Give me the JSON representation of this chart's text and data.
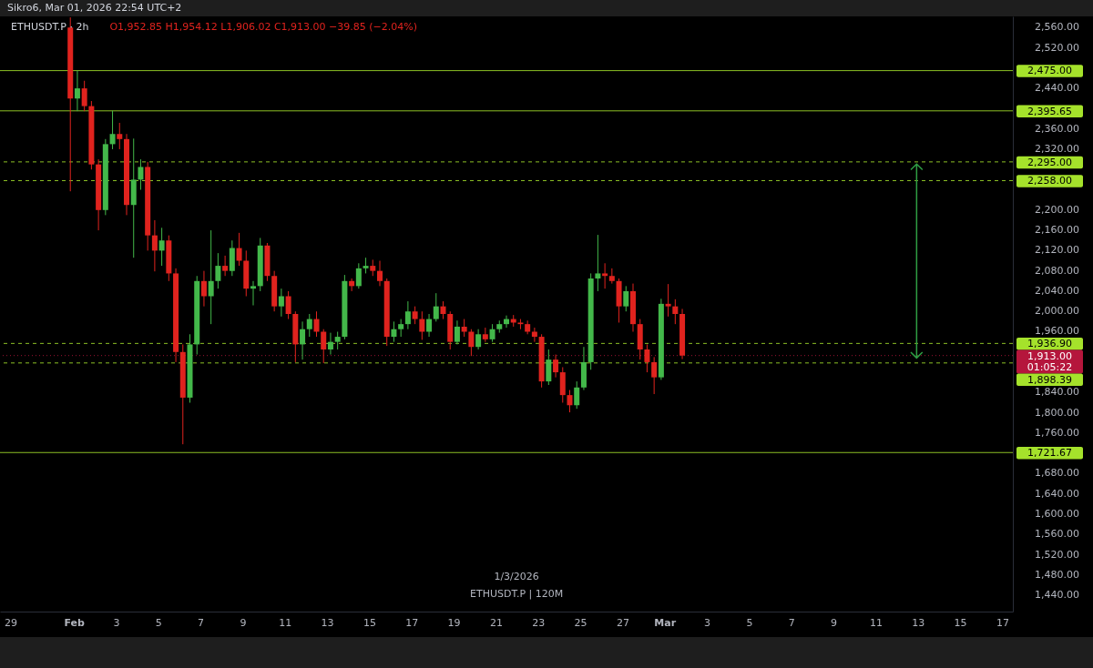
{
  "chart_data": {
    "type": "candlestick",
    "title": "ETHUSDT.P · 2h",
    "subtitle": "O1,952.85 H1,954.12 L1,906.02 C1,913.00 −39.85 (−2.04%)",
    "annotations": [
      "Sikro6, Mar 01, 2026 22:54 UTC+2",
      "1/3/2026",
      "ETHUSDT.P | 120M"
    ],
    "x": [
      "2026-01-31T20:00",
      "2026-02-01T04:00",
      "2026-02-01T12:00",
      "2026-02-01T20:00",
      "2026-02-02T04:00",
      "2026-02-02T12:00",
      "2026-02-02T20:00",
      "2026-02-03T04:00",
      "2026-02-03T12:00",
      "2026-02-03T20:00",
      "2026-02-04T04:00",
      "2026-02-04T12:00",
      "2026-02-04T20:00",
      "2026-02-05T04:00",
      "2026-02-05T12:00",
      "2026-02-05T20:00",
      "2026-02-06T04:00",
      "2026-02-06T12:00",
      "2026-02-06T20:00",
      "2026-02-07T04:00",
      "2026-02-07T12:00",
      "2026-02-07T20:00",
      "2026-02-08T04:00",
      "2026-02-08T12:00",
      "2026-02-08T20:00",
      "2026-02-09T04:00",
      "2026-02-09T12:00",
      "2026-02-09T20:00",
      "2026-02-10T04:00",
      "2026-02-10T12:00",
      "2026-02-10T20:00",
      "2026-02-11T04:00",
      "2026-02-11T12:00",
      "2026-02-11T20:00",
      "2026-02-12T04:00",
      "2026-02-12T12:00",
      "2026-02-12T20:00",
      "2026-02-13T04:00",
      "2026-02-13T12:00",
      "2026-02-13T20:00",
      "2026-02-14T04:00",
      "2026-02-14T12:00",
      "2026-02-14T20:00",
      "2026-02-15T04:00",
      "2026-02-15T12:00",
      "2026-02-15T20:00",
      "2026-02-16T04:00",
      "2026-02-16T12:00",
      "2026-02-16T20:00",
      "2026-02-17T04:00",
      "2026-02-17T12:00",
      "2026-02-17T20:00",
      "2026-02-18T04:00",
      "2026-02-18T12:00",
      "2026-02-18T20:00",
      "2026-02-19T04:00",
      "2026-02-19T12:00",
      "2026-02-19T20:00",
      "2026-02-20T04:00",
      "2026-02-20T12:00",
      "2026-02-20T20:00",
      "2026-02-21T04:00",
      "2026-02-21T12:00",
      "2026-02-21T20:00",
      "2026-02-22T04:00",
      "2026-02-22T12:00",
      "2026-02-22T20:00",
      "2026-02-23T04:00",
      "2026-02-23T12:00",
      "2026-02-23T20:00",
      "2026-02-24T04:00",
      "2026-02-24T12:00",
      "2026-02-24T20:00",
      "2026-02-25T04:00",
      "2026-02-25T12:00",
      "2026-02-25T20:00",
      "2026-02-26T04:00",
      "2026-02-26T12:00",
      "2026-02-26T20:00",
      "2026-02-27T04:00",
      "2026-02-27T12:00",
      "2026-02-27T20:00",
      "2026-02-28T04:00",
      "2026-02-28T12:00",
      "2026-02-28T20:00",
      "2026-03-01T04:00",
      "2026-03-01T12:00",
      "2026-03-01T20:00"
    ],
    "ohlc": [
      [
        2560,
        2580,
        2237,
        2420
      ],
      [
        2420,
        2475,
        2395,
        2440
      ],
      [
        2440,
        2455,
        2395,
        2405
      ],
      [
        2405,
        2415,
        2280,
        2290
      ],
      [
        2290,
        2300,
        2160,
        2200
      ],
      [
        2200,
        2340,
        2190,
        2330
      ],
      [
        2330,
        2396,
        2320,
        2350
      ],
      [
        2350,
        2372,
        2320,
        2340
      ],
      [
        2340,
        2350,
        2190,
        2210
      ],
      [
        2210,
        2341,
        2106,
        2260
      ],
      [
        2260,
        2300,
        2240,
        2285
      ],
      [
        2285,
        2295,
        2120,
        2150
      ],
      [
        2150,
        2180,
        2079,
        2120
      ],
      [
        2120,
        2165,
        2090,
        2140
      ],
      [
        2140,
        2150,
        2060,
        2075
      ],
      [
        2075,
        2085,
        1900,
        1920
      ],
      [
        1920,
        1935,
        1738,
        1830
      ],
      [
        1830,
        1955,
        1820,
        1935
      ],
      [
        1935,
        2070,
        1915,
        2060
      ],
      [
        2060,
        2080,
        2010,
        2030
      ],
      [
        2030,
        2160,
        1975,
        2060
      ],
      [
        2060,
        2115,
        2045,
        2090
      ],
      [
        2090,
        2110,
        2070,
        2080
      ],
      [
        2080,
        2140,
        2070,
        2125
      ],
      [
        2125,
        2155,
        2090,
        2100
      ],
      [
        2100,
        2120,
        2030,
        2045
      ],
      [
        2045,
        2060,
        2012,
        2050
      ],
      [
        2050,
        2145,
        2040,
        2130
      ],
      [
        2130,
        2135,
        2060,
        2070
      ],
      [
        2070,
        2080,
        2000,
        2010
      ],
      [
        2010,
        2045,
        1990,
        2030
      ],
      [
        2030,
        2040,
        1985,
        1995
      ],
      [
        1995,
        2000,
        1900,
        1935
      ],
      [
        1935,
        1980,
        1905,
        1965
      ],
      [
        1965,
        1995,
        1950,
        1985
      ],
      [
        1985,
        2000,
        1950,
        1960
      ],
      [
        1960,
        1965,
        1898,
        1925
      ],
      [
        1925,
        1958,
        1915,
        1940
      ],
      [
        1940,
        1960,
        1925,
        1950
      ],
      [
        1950,
        2072,
        1945,
        2060
      ],
      [
        2060,
        2065,
        2040,
        2050
      ],
      [
        2050,
        2095,
        2045,
        2085
      ],
      [
        2085,
        2106,
        2075,
        2090
      ],
      [
        2090,
        2102,
        2070,
        2080
      ],
      [
        2080,
        2100,
        2050,
        2060
      ],
      [
        2060,
        2065,
        1932,
        1950
      ],
      [
        1950,
        1980,
        1940,
        1965
      ],
      [
        1965,
        1985,
        1950,
        1975
      ],
      [
        1975,
        2020,
        1965,
        2000
      ],
      [
        2000,
        2010,
        1975,
        1985
      ],
      [
        1985,
        2000,
        1944,
        1960
      ],
      [
        1960,
        1995,
        1950,
        1985
      ],
      [
        1985,
        2036,
        1980,
        2010
      ],
      [
        2010,
        2020,
        1985,
        1995
      ],
      [
        1995,
        2000,
        1925,
        1940
      ],
      [
        1940,
        1982,
        1935,
        1970
      ],
      [
        1970,
        1985,
        1950,
        1960
      ],
      [
        1960,
        1965,
        1912,
        1930
      ],
      [
        1930,
        1965,
        1925,
        1955
      ],
      [
        1955,
        1968,
        1940,
        1945
      ],
      [
        1945,
        1975,
        1940,
        1965
      ],
      [
        1965,
        1982,
        1958,
        1975
      ],
      [
        1975,
        1992,
        1968,
        1985
      ],
      [
        1985,
        1993,
        1970,
        1978
      ],
      [
        1978,
        1985,
        1965,
        1975
      ],
      [
        1975,
        1982,
        1955,
        1960
      ],
      [
        1960,
        1968,
        1940,
        1950
      ],
      [
        1950,
        1955,
        1850,
        1862
      ],
      [
        1862,
        1925,
        1855,
        1905
      ],
      [
        1905,
        1915,
        1870,
        1880
      ],
      [
        1880,
        1890,
        1820,
        1835
      ],
      [
        1835,
        1845,
        1801,
        1815
      ],
      [
        1815,
        1862,
        1808,
        1850
      ],
      [
        1850,
        1930,
        1845,
        1900
      ],
      [
        1900,
        2075,
        1885,
        2065
      ],
      [
        2065,
        2151,
        2040,
        2075
      ],
      [
        2075,
        2095,
        2045,
        2070
      ],
      [
        2070,
        2085,
        2055,
        2060
      ],
      [
        2060,
        2065,
        1978,
        2010
      ],
      [
        2010,
        2050,
        2000,
        2040
      ],
      [
        2040,
        2055,
        1960,
        1975
      ],
      [
        1975,
        1985,
        1905,
        1925
      ],
      [
        1925,
        1935,
        1880,
        1900
      ],
      [
        1900,
        1910,
        1837,
        1870
      ],
      [
        1870,
        2025,
        1865,
        2015
      ],
      [
        2015,
        2054,
        1990,
        2010
      ],
      [
        2010,
        2024,
        1975,
        1995
      ],
      [
        1995,
        2005,
        1906,
        1913
      ]
    ],
    "colors": [
      "#e0231e",
      "#43b84a",
      "#e0231e",
      "#e0231e",
      "#e0231e",
      "#43b84a",
      "#43b84a",
      "#e0231e",
      "#e0231e",
      "#43b84a",
      "#43b84a",
      "#e0231e",
      "#e0231e",
      "#43b84a",
      "#e0231e",
      "#e0231e",
      "#e0231e",
      "#43b84a",
      "#43b84a",
      "#e0231e",
      "#43b84a",
      "#43b84a",
      "#e0231e",
      "#43b84a",
      "#e0231e",
      "#e0231e",
      "#43b84a",
      "#43b84a",
      "#e0231e",
      "#e0231e",
      "#43b84a",
      "#e0231e",
      "#e0231e",
      "#43b84a",
      "#43b84a",
      "#e0231e",
      "#e0231e",
      "#43b84a",
      "#43b84a",
      "#43b84a",
      "#e0231e",
      "#43b84a",
      "#43b84a",
      "#e0231e",
      "#e0231e",
      "#e0231e",
      "#43b84a",
      "#43b84a",
      "#43b84a",
      "#e0231e",
      "#e0231e",
      "#43b84a",
      "#43b84a",
      "#e0231e",
      "#e0231e",
      "#43b84a",
      "#e0231e",
      "#e0231e",
      "#43b84a",
      "#e0231e",
      "#43b84a",
      "#43b84a",
      "#43b84a",
      "#e0231e",
      "#e0231e",
      "#e0231e",
      "#e0231e",
      "#e0231e",
      "#43b84a",
      "#e0231e",
      "#e0231e",
      "#e0231e",
      "#43b84a",
      "#43b84a",
      "#43b84a",
      "#43b84a",
      "#e0231e",
      "#e0231e",
      "#e0231e",
      "#43b84a",
      "#e0231e",
      "#e0231e",
      "#e0231e",
      "#e0231e",
      "#43b84a",
      "#e0231e",
      "#e0231e",
      "#e0231e"
    ],
    "xlim": [
      "2026-01-28T12:00",
      "2026-03-17T12:00"
    ],
    "xticks": [
      {
        "value": "2026-01-29",
        "label": "29"
      },
      {
        "value": "2026-02-01",
        "label": "Feb"
      },
      {
        "value": "2026-02-03",
        "label": "3"
      },
      {
        "value": "2026-02-05",
        "label": "5"
      },
      {
        "value": "2026-02-07",
        "label": "7"
      },
      {
        "value": "2026-02-09",
        "label": "9"
      },
      {
        "value": "2026-02-11",
        "label": "11"
      },
      {
        "value": "2026-02-13",
        "label": "13"
      },
      {
        "value": "2026-02-15",
        "label": "15"
      },
      {
        "value": "2026-02-17",
        "label": "17"
      },
      {
        "value": "2026-02-19",
        "label": "19"
      },
      {
        "value": "2026-02-21",
        "label": "21"
      },
      {
        "value": "2026-02-23",
        "label": "23"
      },
      {
        "value": "2026-02-25",
        "label": "25"
      },
      {
        "value": "2026-02-27",
        "label": "27"
      },
      {
        "value": "2026-03-01",
        "label": "Mar"
      },
      {
        "value": "2026-03-03",
        "label": "3"
      },
      {
        "value": "2026-03-05",
        "label": "5"
      },
      {
        "value": "2026-03-07",
        "label": "7"
      },
      {
        "value": "2026-03-09",
        "label": "9"
      },
      {
        "value": "2026-03-11",
        "label": "11"
      },
      {
        "value": "2026-03-13",
        "label": "13"
      },
      {
        "value": "2026-03-15",
        "label": "15"
      },
      {
        "value": "2026-03-17",
        "label": "17"
      }
    ],
    "ylim": [
      1408,
      2582
    ],
    "yticks": [
      {
        "value": 2560,
        "label": "2,560.00"
      },
      {
        "value": 2520,
        "label": "2,520.00"
      },
      {
        "value": 2440,
        "label": "2,440.00"
      },
      {
        "value": 2360,
        "label": "2,360.00"
      },
      {
        "value": 2320,
        "label": "2,320.00"
      },
      {
        "value": 2200,
        "label": "2,200.00"
      },
      {
        "value": 2160,
        "label": "2,160.00"
      },
      {
        "value": 2120,
        "label": "2,120.00"
      },
      {
        "value": 2080,
        "label": "2,080.00"
      },
      {
        "value": 2040,
        "label": "2,040.00"
      },
      {
        "value": 2000,
        "label": "2,000.00"
      },
      {
        "value": 1960,
        "label": "1,960.00"
      },
      {
        "value": 1840,
        "label": "1,840.00"
      },
      {
        "value": 1800,
        "label": "1,800.00"
      },
      {
        "value": 1760,
        "label": "1,760.00"
      },
      {
        "value": 1680,
        "label": "1,680.00"
      },
      {
        "value": 1640,
        "label": "1,640.00"
      },
      {
        "value": 1600,
        "label": "1,600.00"
      },
      {
        "value": 1560,
        "label": "1,560.00"
      },
      {
        "value": 1520,
        "label": "1,520.00"
      },
      {
        "value": 1480,
        "label": "1,480.00"
      },
      {
        "value": 1440,
        "label": "1,440.00"
      }
    ],
    "ref_lines": [
      {
        "axis": "y",
        "value": 2475,
        "label": "2,475.00",
        "color": "#a5e22b",
        "line_style": "solid"
      },
      {
        "axis": "y",
        "value": 2395.65,
        "label": "2,395.65",
        "color": "#a5e22b",
        "line_style": "solid"
      },
      {
        "axis": "y",
        "value": 2295,
        "label": "2,295.00",
        "color": "#a5e22b",
        "line_style": "dashed"
      },
      {
        "axis": "y",
        "value": 2258,
        "label": "2,258.00",
        "color": "#a5e22b",
        "line_style": "dashed"
      },
      {
        "axis": "y",
        "value": 1936.9,
        "label": "1,936.90",
        "color": "#a5e22b",
        "line_style": "dashed"
      },
      {
        "axis": "y",
        "value": 1913,
        "label": "1,913.00\n01:05:22",
        "color": "#b5163c",
        "line_style": "dotted"
      },
      {
        "axis": "y",
        "value": 1898.39,
        "label": "1,898.39",
        "color": "#a5e22b",
        "line_style": "dashed"
      },
      {
        "axis": "y",
        "value": 1721.67,
        "label": "1,721.67",
        "color": "#a5e22b",
        "line_style": "solid"
      }
    ],
    "grid": false
  }
}
